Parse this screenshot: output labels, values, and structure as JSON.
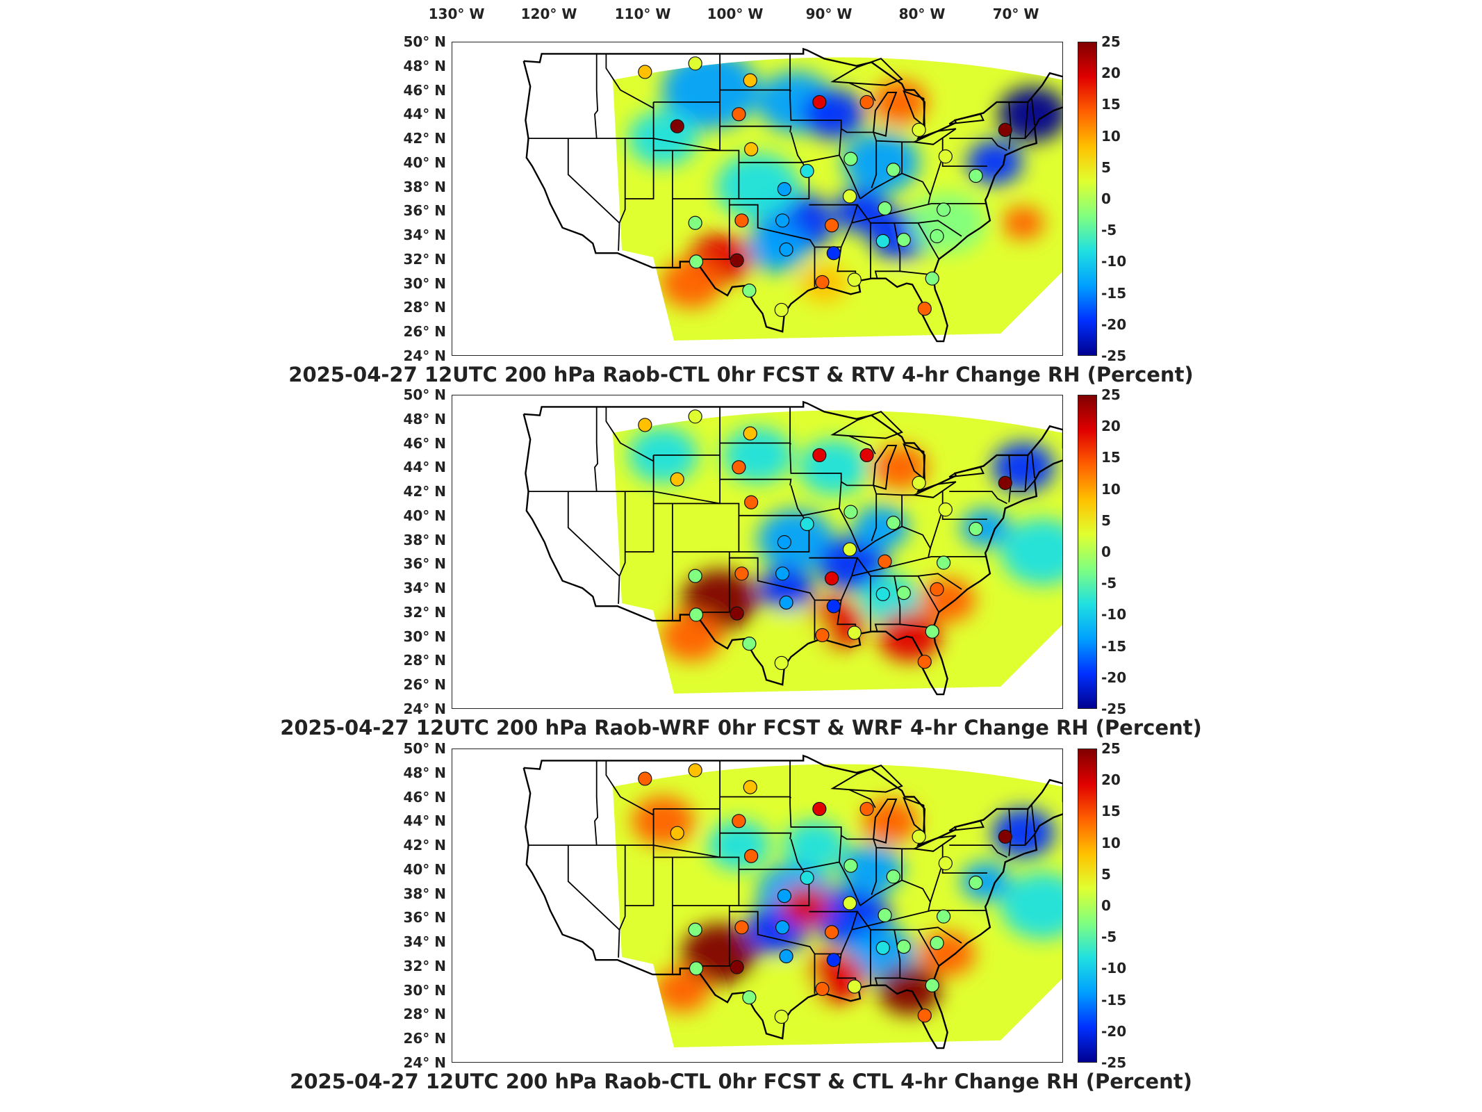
{
  "longitude_labels": [
    "130° W",
    "120° W",
    "110° W",
    "100° W",
    "90° W",
    "80° W",
    "70° W"
  ],
  "latitude_labels": [
    "50° N",
    "48° N",
    "46° N",
    "44° N",
    "42° N",
    "40° N",
    "38° N",
    "36° N",
    "34° N",
    "32° N",
    "30° N",
    "28° N",
    "26° N",
    "24° N"
  ],
  "colorbar": {
    "ticks": [
      "25",
      "20",
      "15",
      "10",
      "5",
      "0",
      "-5",
      "-10",
      "-15",
      "-20",
      "-25"
    ],
    "colors": [
      "#00008f",
      "#0030ff",
      "#00a0ff",
      "#20e0e0",
      "#80ff80",
      "#e0ff30",
      "#ffc000",
      "#ff6000",
      "#e00000",
      "#800000"
    ]
  },
  "panels": [
    {
      "title": "2025-04-27 12UTC 200 hPa Raob-CTL 0hr FCST & RTV 4-hr Change RH (Percent)"
    },
    {
      "title": "2025-04-27 12UTC 200 hPa Raob-WRF 0hr FCST & WRF 4-hr Change RH (Percent)"
    },
    {
      "title": "2025-04-27 12UTC 200 hPa Raob-CTL 0hr FCST & CTL 4-hr Change RH (Percent)"
    }
  ],
  "stations": [
    {
      "lon": -111.9,
      "lat": 47.5,
      "v": [
        8,
        8,
        10
      ]
    },
    {
      "lon": -106.6,
      "lat": 48.2,
      "v": [
        3,
        3,
        5
      ]
    },
    {
      "lon": -100.8,
      "lat": 46.8,
      "v": [
        6,
        6,
        8
      ]
    },
    {
      "lon": -93.5,
      "lat": 45.0,
      "v": [
        16,
        16,
        16
      ]
    },
    {
      "lon": -88.5,
      "lat": 45.0,
      "v": [
        14,
        17,
        14
      ]
    },
    {
      "lon": -108.5,
      "lat": 43.0,
      "v": [
        22,
        5,
        8
      ]
    },
    {
      "lon": -102.0,
      "lat": 44.0,
      "v": [
        10,
        10,
        10
      ]
    },
    {
      "lon": -100.7,
      "lat": 41.1,
      "v": [
        9,
        12,
        10
      ]
    },
    {
      "lon": -83.0,
      "lat": 42.7,
      "v": [
        2,
        2,
        2
      ]
    },
    {
      "lon": -73.9,
      "lat": 42.7,
      "v": [
        25,
        25,
        25
      ]
    },
    {
      "lon": -90.2,
      "lat": 40.3,
      "v": [
        -5,
        -5,
        -5
      ]
    },
    {
      "lon": -85.7,
      "lat": 39.4,
      "v": [
        -2,
        -2,
        -2
      ]
    },
    {
      "lon": -80.2,
      "lat": 40.5,
      "v": [
        0,
        0,
        0
      ]
    },
    {
      "lon": -97.2,
      "lat": 37.8,
      "v": [
        -15,
        -15,
        -15
      ]
    },
    {
      "lon": -94.8,
      "lat": 39.3,
      "v": [
        -10,
        -10,
        -10
      ]
    },
    {
      "lon": -90.3,
      "lat": 37.2,
      "v": [
        2,
        2,
        2
      ]
    },
    {
      "lon": -86.6,
      "lat": 36.2,
      "v": [
        -2,
        10,
        -2
      ]
    },
    {
      "lon": -80.4,
      "lat": 36.1,
      "v": [
        -2,
        -2,
        -2
      ]
    },
    {
      "lon": -77.0,
      "lat": 38.9,
      "v": [
        -5,
        -5,
        -5
      ]
    },
    {
      "lon": -106.6,
      "lat": 35.0,
      "v": [
        -2,
        -2,
        -2
      ]
    },
    {
      "lon": -101.7,
      "lat": 35.2,
      "v": [
        10,
        10,
        10
      ]
    },
    {
      "lon": -97.4,
      "lat": 35.2,
      "v": [
        -12,
        -12,
        -12
      ]
    },
    {
      "lon": -92.2,
      "lat": 34.8,
      "v": [
        14,
        18,
        14
      ]
    },
    {
      "lon": -86.8,
      "lat": 33.5,
      "v": [
        -10,
        -10,
        -10
      ]
    },
    {
      "lon": -84.6,
      "lat": 33.6,
      "v": [
        -2,
        -2,
        -2
      ]
    },
    {
      "lon": -81.1,
      "lat": 33.9,
      "v": [
        -2,
        10,
        -2
      ]
    },
    {
      "lon": -106.5,
      "lat": 31.8,
      "v": [
        -5,
        -5,
        -5
      ]
    },
    {
      "lon": -102.2,
      "lat": 31.9,
      "v": [
        22,
        22,
        22
      ]
    },
    {
      "lon": -97.0,
      "lat": 32.8,
      "v": [
        -12,
        -12,
        -12
      ]
    },
    {
      "lon": -92.0,
      "lat": 32.5,
      "v": [
        -20,
        -20,
        -20
      ]
    },
    {
      "lon": -93.2,
      "lat": 30.1,
      "v": [
        12,
        12,
        12
      ]
    },
    {
      "lon": -89.8,
      "lat": 30.3,
      "v": [
        4,
        4,
        4
      ]
    },
    {
      "lon": -97.5,
      "lat": 27.8,
      "v": [
        4,
        4,
        4
      ]
    },
    {
      "lon": -100.9,
      "lat": 29.4,
      "v": [
        -2,
        -2,
        -2
      ]
    },
    {
      "lon": -82.4,
      "lat": 27.9,
      "v": [
        14,
        14,
        14
      ]
    },
    {
      "lon": -81.6,
      "lat": 30.4,
      "v": [
        -2,
        -2,
        -2
      ]
    }
  ]
}
